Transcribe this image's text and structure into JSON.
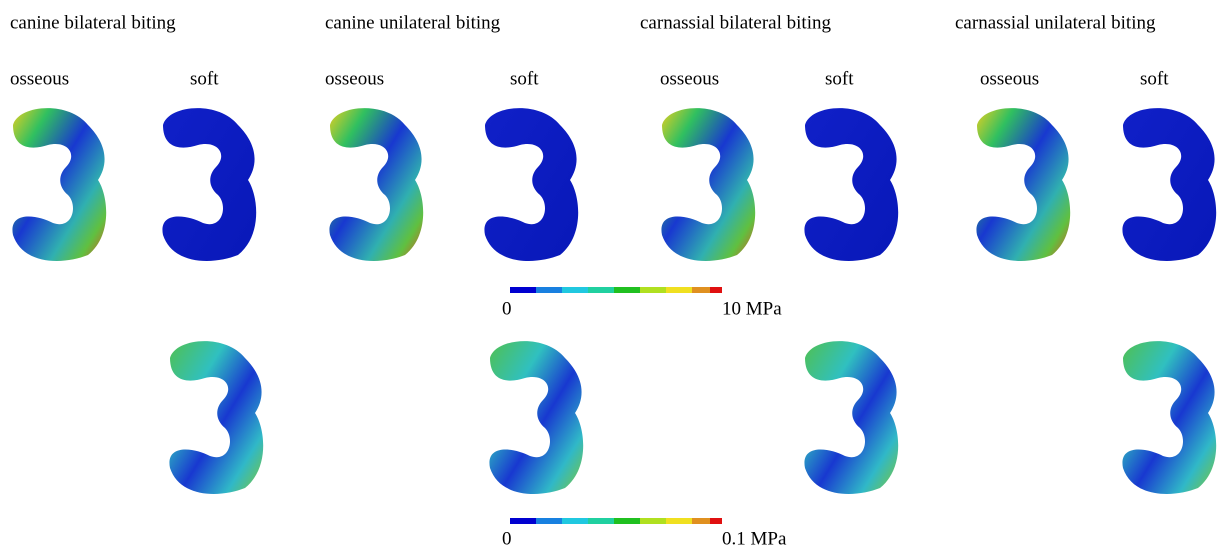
{
  "columns": [
    {
      "title": "canine bilateral biting",
      "osseous": "osseous",
      "soft": "soft"
    },
    {
      "title": "canine unilateral biting",
      "osseous": "osseous",
      "soft": "soft"
    },
    {
      "title": "carnassial bilateral biting",
      "osseous": "osseous",
      "soft": "soft"
    },
    {
      "title": "carnassial unilateral biting",
      "osseous": "osseous",
      "soft": "soft"
    }
  ],
  "scales": [
    {
      "min": "0",
      "max": "10 MPa"
    },
    {
      "min": "0",
      "max": "0.1 MPa"
    }
  ]
}
